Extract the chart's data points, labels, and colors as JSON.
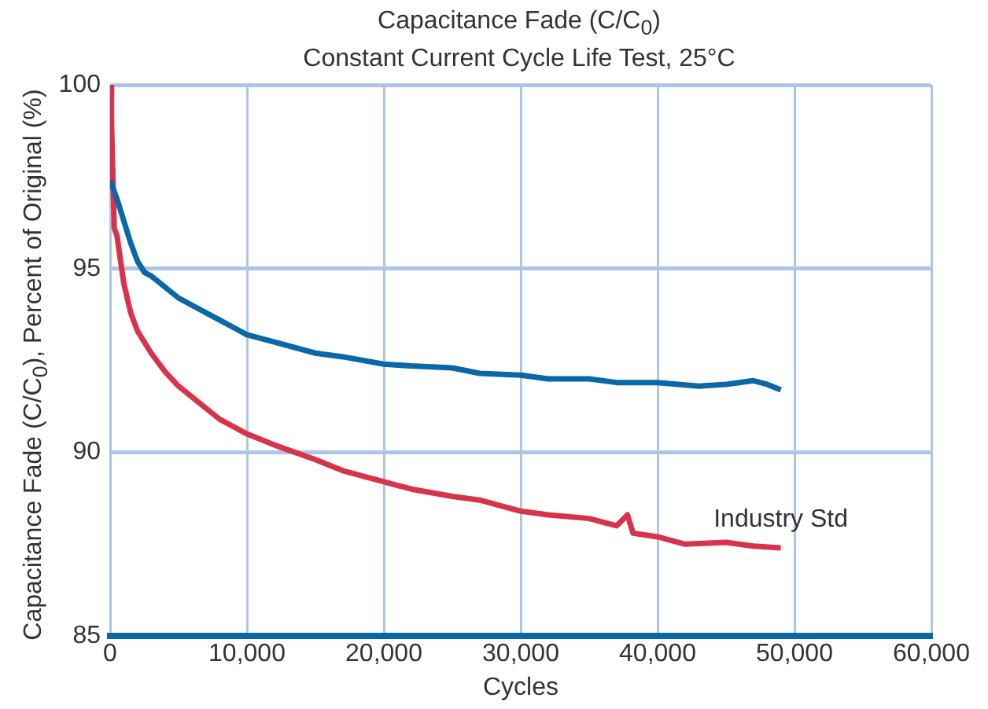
{
  "chart_data": {
    "type": "line",
    "title": "Capacitance Fade (C/C$_{0}$)",
    "subtitle": "Constant Current Cycle Life Test, 25°C",
    "xlabel": "Cycles",
    "ylabel": "Capacitance Fade (C/C$_{0}$), Percent of Original (%)",
    "xlim": [
      0,
      60000
    ],
    "xticks": [
      {
        "value": 0,
        "label": "0"
      },
      {
        "value": 10000,
        "label": "10,000"
      },
      {
        "value": 20000,
        "label": "20,000"
      },
      {
        "value": 30000,
        "label": "30,000"
      },
      {
        "value": 40000,
        "label": "40,000"
      },
      {
        "value": 50000,
        "label": "50,000"
      },
      {
        "value": 60000,
        "label": "60,000"
      }
    ],
    "ylim": [
      85,
      100
    ],
    "yticks": [
      85,
      90,
      95,
      100
    ],
    "grid": true,
    "legend": false,
    "marker": "none",
    "line_style": "solid",
    "series": [
      {
        "color": "#0a67a8",
        "x": [
          0,
          500,
          1000,
          1500,
          2000,
          2500,
          3000,
          4000,
          5000,
          6000,
          7000,
          8000,
          9000,
          10000,
          12000,
          15000,
          17000,
          20000,
          22000,
          25000,
          27000,
          30000,
          32000,
          35000,
          37000,
          40000,
          43000,
          45000,
          47000,
          48000,
          49000
        ],
        "values": [
          97.4,
          96.9,
          96.3,
          95.7,
          95.2,
          94.9,
          94.8,
          94.5,
          94.2,
          94.0,
          93.8,
          93.6,
          93.4,
          93.2,
          93.0,
          92.7,
          92.6,
          92.4,
          92.35,
          92.3,
          92.15,
          92.1,
          92.0,
          92.0,
          91.9,
          91.9,
          91.8,
          91.85,
          91.95,
          91.85,
          91.7
        ]
      },
      {
        "name": "Industry Std",
        "color": "#d9334b",
        "x": [
          0,
          100,
          200,
          300,
          500,
          1000,
          1500,
          2000,
          3000,
          4000,
          5000,
          6000,
          7000,
          8000,
          9000,
          10000,
          12000,
          15000,
          17000,
          20000,
          22000,
          25000,
          27000,
          30000,
          32000,
          35000,
          37000,
          37800,
          38200,
          40000,
          42000,
          45000,
          47000,
          49000
        ],
        "values": [
          100,
          99,
          97.5,
          96.1,
          95.9,
          94.6,
          93.8,
          93.3,
          92.7,
          92.2,
          91.8,
          91.5,
          91.2,
          90.9,
          90.7,
          90.5,
          90.2,
          89.8,
          89.5,
          89.2,
          89.0,
          88.8,
          88.7,
          88.4,
          88.3,
          88.2,
          88.0,
          88.3,
          87.8,
          87.7,
          87.5,
          87.55,
          87.45,
          87.4
        ]
      }
    ]
  }
}
